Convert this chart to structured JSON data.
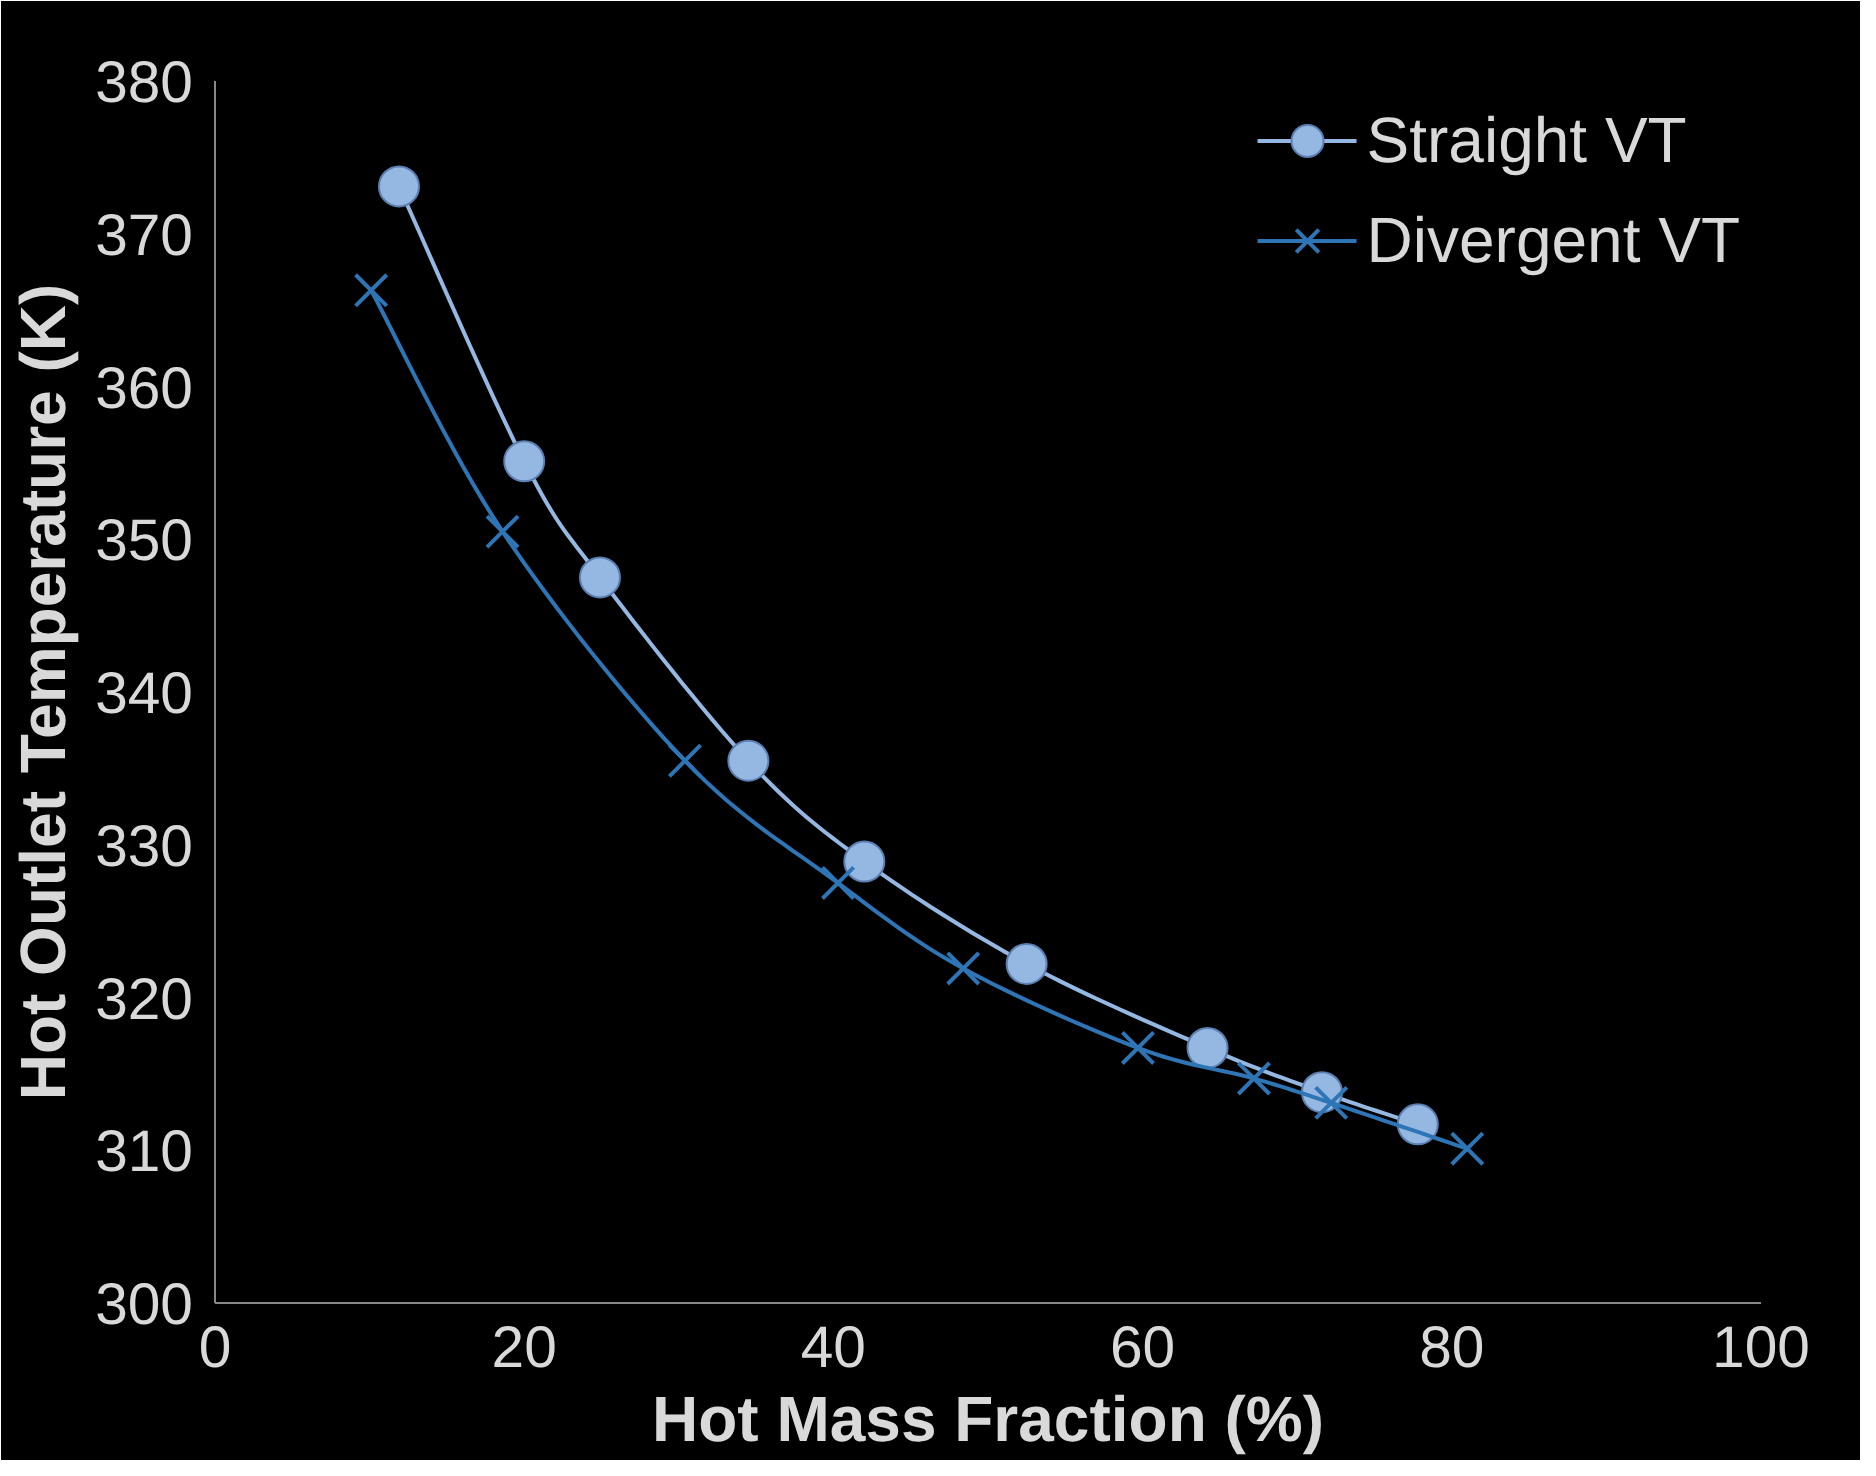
{
  "chart_data": {
    "type": "line",
    "xlabel": "Hot Mass Fraction (%)",
    "ylabel": "Hot Outlet Temperature (K)",
    "xlim": [
      0,
      100
    ],
    "xticks": [
      0,
      20,
      40,
      60,
      80,
      100
    ],
    "ylim": [
      300,
      380
    ],
    "yticks": [
      300,
      310,
      320,
      330,
      340,
      350,
      360,
      370,
      380
    ],
    "grid": false,
    "legend": "top right",
    "series": [
      {
        "name": "Straight VT",
        "color": "#95b8e3",
        "marker": "circle",
        "x": [
          11.9,
          20,
          24.9,
          34.5,
          42,
          52.5,
          64.2,
          71.6,
          77.8
        ],
        "values": [
          373.1,
          355.1,
          347.5,
          335.5,
          328.9,
          322.2,
          316.7,
          313.8,
          311.7
        ]
      },
      {
        "name": "Divergent VT",
        "color": "#2e75b6",
        "marker": "cross",
        "x": [
          10.1,
          18.6,
          30.4,
          40.3,
          48.4,
          59.7,
          67.2,
          72.2,
          81
        ],
        "values": [
          366.3,
          350.5,
          335.5,
          327.5,
          321.9,
          316.7,
          314.7,
          313.1,
          310.1
        ]
      }
    ]
  }
}
